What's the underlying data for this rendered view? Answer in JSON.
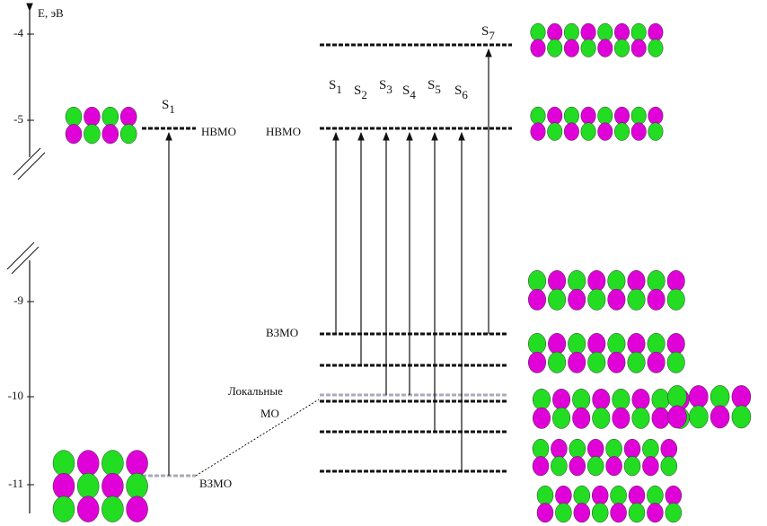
{
  "axis": {
    "label": "E, эВ",
    "ticks": [
      "-4",
      "-5",
      "-9",
      "-10",
      "-11"
    ]
  },
  "left": {
    "transition": {
      "letter": "S",
      "index": "1"
    },
    "lumo_label": "НВМО",
    "homo_label": "ВЗМО"
  },
  "right": {
    "lumo_label": "НВМО",
    "homo_label": "ВЗМО",
    "local_label": [
      "Локальные",
      "МО"
    ],
    "transitions": [
      {
        "letter": "S",
        "index": "1"
      },
      {
        "letter": "S",
        "index": "2"
      },
      {
        "letter": "S",
        "index": "3"
      },
      {
        "letter": "S",
        "index": "4"
      },
      {
        "letter": "S",
        "index": "5"
      },
      {
        "letter": "S",
        "index": "6"
      },
      {
        "letter": "S",
        "index": "7"
      }
    ]
  }
}
